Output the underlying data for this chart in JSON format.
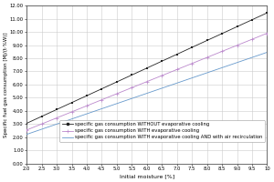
{
  "title": "",
  "xlabel": "Initial moisture [%]",
  "ylabel": "Specific fuel gas consumption [MJ/(t·%W)]",
  "xlim": [
    2.0,
    10.0
  ],
  "ylim": [
    0.0,
    12.0
  ],
  "xticks": [
    2.0,
    2.5,
    3.0,
    3.5,
    4.0,
    4.5,
    5.0,
    5.5,
    6.0,
    6.5,
    7.0,
    7.5,
    8.0,
    8.5,
    9.0,
    9.5,
    10.0
  ],
  "xtick_labels": [
    "2.0",
    "2.5",
    "3.0",
    "3.5",
    "4.0",
    "4.5",
    "5.0",
    "5.5",
    "6.0",
    "6.5",
    "7.0",
    "7.5",
    "8.0",
    "8.5",
    "9.0",
    "9.5",
    "10"
  ],
  "yticks": [
    0.0,
    1.0,
    2.0,
    3.0,
    4.0,
    5.0,
    6.0,
    7.0,
    8.0,
    9.0,
    10.0,
    11.0,
    12.0
  ],
  "ytick_labels": [
    "0.00",
    "1.00",
    "2.00",
    "3.00",
    "4.00",
    "5.00",
    "6.00",
    "7.00",
    "8.00",
    "9.00",
    "10.00",
    "11.00",
    "12.00"
  ],
  "line1_label": "specific gas consumption WITHOUT evaporative cooling",
  "line2_label": "specific gas consumption WITH evaporative cooling",
  "line3_label": "specific gas consumption WITH evaporative cooling AND with air recirculation",
  "line1_color": "#222222",
  "line2_color": "#bb88cc",
  "line3_color": "#6699cc",
  "x_start": 2.0,
  "x_end": 10.0,
  "line1_slope": 1.05,
  "line1_intercept": 0.95,
  "line2_slope": 0.92,
  "line2_intercept": 0.7,
  "line3_slope": 0.78,
  "line3_intercept": 0.65,
  "grid_color": "#cccccc",
  "bg_color": "#ffffff",
  "legend_fontsize": 3.8,
  "axis_fontsize": 4.5,
  "tick_fontsize": 3.8
}
